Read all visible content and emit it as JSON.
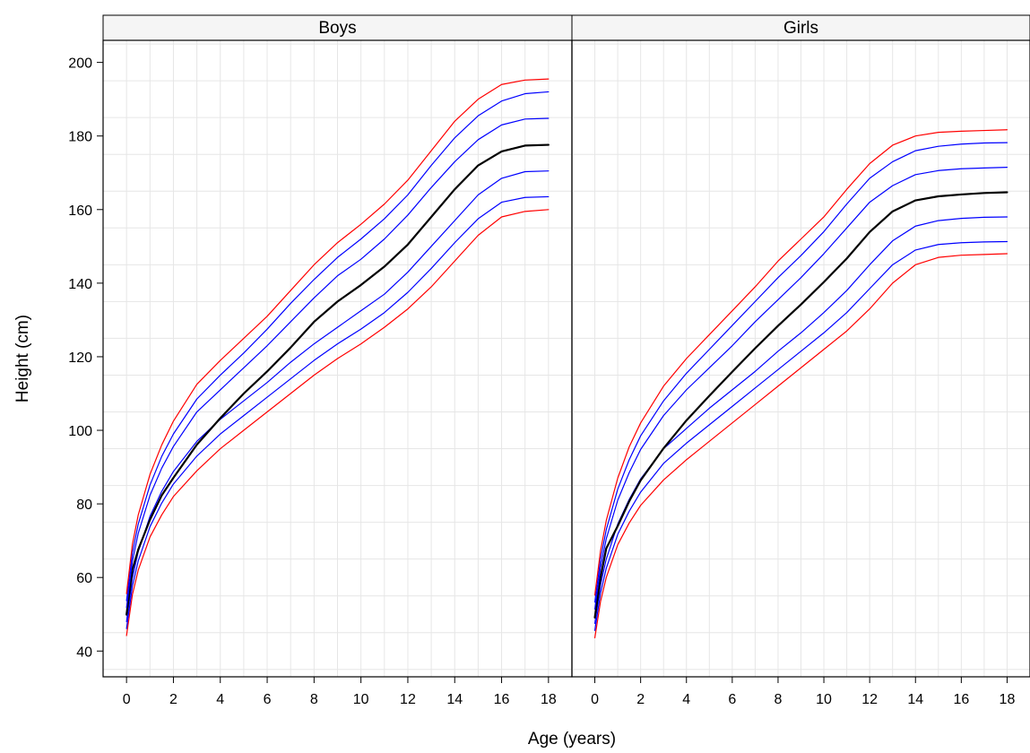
{
  "chart_data": {
    "type": "line",
    "xlabel": "Age (years)",
    "ylabel": "Height (cm)",
    "xlim": [
      -1,
      19
    ],
    "ylim": [
      33,
      206
    ],
    "x_ticks": [
      "0",
      "2",
      "4",
      "6",
      "8",
      "10",
      "12",
      "14",
      "16",
      "18"
    ],
    "y_ticks": [
      "40",
      "60",
      "80",
      "100",
      "120",
      "140",
      "160",
      "180",
      "200"
    ],
    "grid": true,
    "colors": {
      "outer": "#ff0000",
      "inner": "#0000ff",
      "median": "#000000",
      "grid": "#e6e6e6",
      "strip": "#f5f5f5"
    },
    "x": [
      0,
      0.25,
      0.5,
      1,
      1.5,
      2,
      3,
      4,
      5,
      6,
      7,
      8,
      9,
      10,
      11,
      12,
      13,
      14,
      15,
      16,
      17,
      18
    ],
    "panels": [
      {
        "label": "Boys",
        "series": [
          {
            "role": "outer",
            "values": [
              44.2,
              55.3,
              62,
              71,
              77,
              82,
              89,
              95,
              100,
              105,
              110,
              115,
              119.5,
              123.5,
              128,
              133,
              139,
              146,
              153,
              158,
              159.5,
              160
            ]
          },
          {
            "role": "inner",
            "values": [
              46.1,
              57.6,
              64.5,
              73.8,
              80.2,
              85.4,
              93,
              99,
              104,
              109,
              114,
              119,
              123.5,
              127.5,
              132,
              137.5,
              144,
              151,
              157.5,
              162,
              163.3,
              163.5
            ]
          },
          {
            "role": "inner",
            "values": [
              48,
              59.9,
              67,
              76.6,
              83.4,
              88.8,
              97,
              103,
              108,
              113,
              118.5,
              123.5,
              128,
              132.5,
              137,
              143,
              150,
              157,
              164,
              168.5,
              170.3,
              170.5
            ]
          },
          {
            "role": "median",
            "values": [
              49.9,
              62.1,
              67.6,
              75.7,
              82.3,
              87.1,
              96.1,
              103.3,
              110,
              116,
              122.5,
              129.5,
              135,
              139.5,
              144.5,
              150.5,
              158,
              165.5,
              172,
              175.8,
              177.4,
              177.6
            ]
          },
          {
            "role": "inner",
            "values": [
              51.8,
              64.4,
              72,
              82.3,
              89.7,
              95.6,
              105,
              111,
              117,
              123,
              129.5,
              136,
              142,
              146.5,
              152,
              158.5,
              166,
              173,
              179,
              183,
              184.6,
              184.8
            ]
          },
          {
            "role": "inner",
            "values": [
              53.7,
              66.7,
              74.5,
              85.1,
              92.9,
              99,
              108.5,
              115,
              121,
              127.5,
              134.5,
              141,
              147,
              152,
              157.5,
              164,
              172,
              179.5,
              185.5,
              189.5,
              191.5,
              192
            ]
          },
          {
            "role": "outer",
            "values": [
              55.6,
              69,
              77,
              88,
              96,
              102.5,
              112.5,
              119,
              125,
              131,
              138,
              145,
              151,
              156,
              161.5,
              168,
              176,
              184,
              190,
              194,
              195.2,
              195.5
            ]
          }
        ]
      },
      {
        "label": "Girls",
        "series": [
          {
            "role": "outer",
            "values": [
              43.6,
              53.5,
              60,
              68.9,
              74.8,
              79.6,
              86.5,
              92,
              97,
              102,
              107,
              112,
              117,
              122,
              127,
              133,
              140,
              145,
              147,
              147.6,
              147.8,
              148
            ]
          },
          {
            "role": "inner",
            "values": [
              45.6,
              55.8,
              62.5,
              71.7,
              78,
              83.2,
              91,
              96.5,
              101.5,
              106.5,
              111.5,
              116.5,
              121.5,
              126.5,
              132,
              138.5,
              145,
              149,
              150.5,
              151,
              151.2,
              151.3
            ]
          },
          {
            "role": "inner",
            "values": [
              47.5,
              58.1,
              65,
              74.5,
              81.2,
              86.8,
              95,
              100.5,
              106,
              111,
              116,
              121.5,
              126.5,
              132,
              138,
              145,
              151.5,
              155.5,
              157,
              157.6,
              157.9,
              158
            ]
          },
          {
            "role": "median",
            "values": [
              49.1,
              60,
              67.9,
              74,
              80.7,
              86.4,
              95.1,
              102.7,
              109.4,
              115.9,
              122.3,
              128.4,
              134.2,
              140.3,
              146.7,
              153.9,
              159.5,
              162.5,
              163.6,
              164.1,
              164.5,
              164.7
            ]
          },
          {
            "role": "inner",
            "values": [
              51.4,
              62.7,
              70.5,
              81,
              88.5,
              94.8,
              104,
              111,
              117,
              123,
              129.5,
              135.5,
              141.5,
              148,
              155,
              162,
              166.5,
              169.5,
              170.6,
              171.1,
              171.3,
              171.5
            ]
          },
          {
            "role": "inner",
            "values": [
              53.3,
              65,
              73,
              84,
              92,
              98.5,
              108,
              115.5,
              122,
              128.5,
              135,
              141.5,
              147.5,
              154,
              161.5,
              168.5,
              173,
              176,
              177.2,
              177.8,
              178.1,
              178.2
            ]
          },
          {
            "role": "outer",
            "values": [
              55.2,
              67.3,
              75.5,
              87,
              95.5,
              102,
              112,
              119.5,
              126,
              132.5,
              139,
              146,
              152,
              158,
              165.5,
              172.5,
              177.5,
              180,
              181,
              181.3,
              181.5,
              181.7
            ]
          }
        ]
      }
    ]
  }
}
